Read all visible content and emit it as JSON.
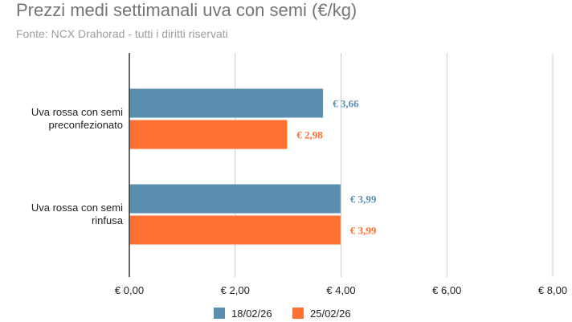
{
  "chart_data": {
    "type": "bar",
    "orientation": "horizontal",
    "title": "Prezzi medi settimanali uva con semi (€/kg)",
    "subtitle": "Fonte: NCX Drahorad - tutti i diritti riservati",
    "categories": [
      [
        "Uva rossa con semi",
        "preconfezionato"
      ],
      [
        "Uva rossa con semi",
        "rinfusa"
      ]
    ],
    "series": [
      {
        "name": "18/02/26",
        "color": "#5b8fb0",
        "values": [
          3.66,
          3.99
        ],
        "labels": [
          "€ 3,66",
          "€ 3,99"
        ]
      },
      {
        "name": "25/02/26",
        "color": "#ff7033",
        "values": [
          2.98,
          3.99
        ],
        "labels": [
          "€ 2,98",
          "€ 3,99"
        ]
      }
    ],
    "xlim": [
      0,
      8
    ],
    "ticks": [
      0,
      2,
      4,
      6,
      8
    ],
    "tick_labels": [
      "€ 0,00",
      "€ 2,00",
      "€ 4,00",
      "€ 6,00",
      "€ 8,00"
    ],
    "grid": true,
    "legend_position": "bottom"
  }
}
